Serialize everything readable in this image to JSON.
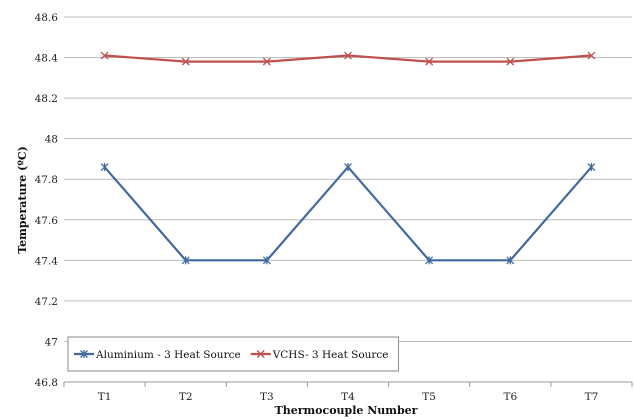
{
  "chart_data": {
    "type": "line",
    "categories": [
      "T1",
      "T2",
      "T3",
      "T4",
      "T5",
      "T6",
      "T7"
    ],
    "series": [
      {
        "name": "Aluminium - 3 Heat Source",
        "color": "#3f6aa0",
        "marker": "star",
        "values": [
          47.86,
          47.4,
          47.4,
          47.86,
          47.4,
          47.4,
          47.86
        ]
      },
      {
        "name": "VCHS- 3 Heat Source",
        "color": "#c0504d",
        "marker": "x",
        "values": [
          48.41,
          48.38,
          48.38,
          48.41,
          48.38,
          48.38,
          48.41
        ]
      }
    ],
    "xlabel": "Thermocouple Number",
    "ylabel": "Temperature (ºC)",
    "ylim": [
      46.8,
      48.6
    ],
    "yticks": [
      "46.8",
      "47",
      "47.2",
      "47.4",
      "47.6",
      "47.8",
      "48",
      "48.2",
      "48.4",
      "48.6"
    ],
    "grid": true,
    "legend": "bottom-left"
  }
}
